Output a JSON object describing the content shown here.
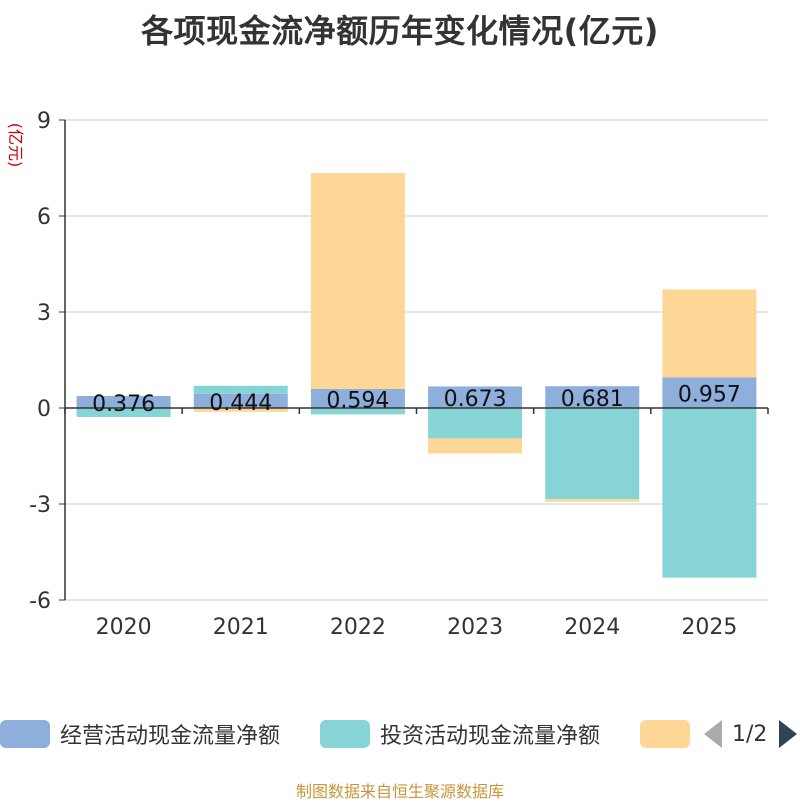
{
  "chart_data": {
    "type": "bar",
    "stacked": true,
    "title": "各项现金流净额历年变化情况(亿元)",
    "ylabel": "(亿元)",
    "xlabel": "",
    "ylim": [
      -6,
      9
    ],
    "yticks": [
      -6,
      -3,
      0,
      3,
      6,
      9
    ],
    "categories": [
      "2020",
      "2021",
      "2022",
      "2023",
      "2024",
      "2025"
    ],
    "series": [
      {
        "name": "经营活动现金流量净额",
        "color": "#8eaedc",
        "values": [
          0.376,
          0.444,
          0.594,
          0.673,
          0.681,
          0.957
        ],
        "labels": [
          "0.376",
          "0.444",
          "0.594",
          "0.673",
          "0.681",
          "0.957"
        ]
      },
      {
        "name": "投资活动现金流量净额",
        "color": "#86d4d6",
        "values": [
          -0.28,
          0.25,
          -0.2,
          -0.95,
          -2.85,
          -5.3
        ]
      },
      {
        "name": "",
        "color": "#fdd795",
        "values": [
          0.0,
          -0.12,
          6.75,
          -0.47,
          -0.08,
          2.75
        ]
      }
    ],
    "legend": {
      "position": "bottom",
      "page": "1/2"
    }
  },
  "footer": "制图数据来自恒生聚源数据库"
}
